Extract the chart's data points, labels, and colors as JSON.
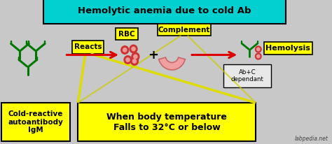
{
  "bg_color": "#c8c8c8",
  "title_text": "Hemolytic anemia due to cold Ab",
  "title_bg": "#00d0d0",
  "title_color": "black",
  "yellow": "#ffff00",
  "green": "#007700",
  "red_arrow": "#dd0000",
  "rbc_color": "#cc3333",
  "rbc_light": "#ee9999",
  "comp_color": "#f0a0a0",
  "comp_edge": "#cc6666",
  "label_reacts": "Reacts",
  "label_rbc": "RBC",
  "label_complement": "Complement",
  "label_hemolysis": "Hemolysis",
  "label_cold": "Cold-reactive\nautoantibody\nIgM",
  "label_body_temp": "When body temperature\nFalls to 32°C or below",
  "label_abc": "Ab+C\ndependant",
  "watermark": "labpedia.net",
  "xlim": [
    0,
    10
  ],
  "ylim": [
    0,
    4.12
  ]
}
